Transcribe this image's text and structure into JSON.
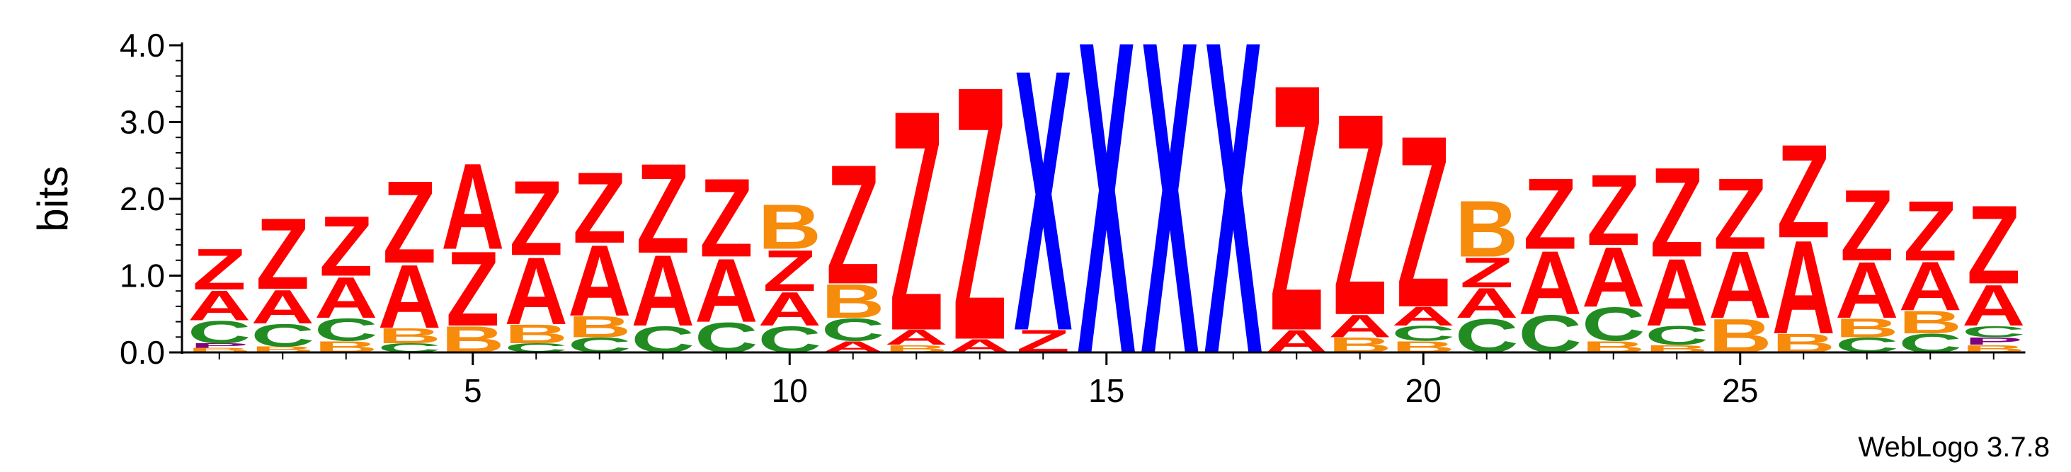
{
  "chart_data": {
    "type": "sequence-logo",
    "ylabel": "bits",
    "ylim": [
      0,
      4.0
    ],
    "yticks": [
      "0.0",
      "1.0",
      "2.0",
      "3.0",
      "4.0"
    ],
    "xticks": [
      5,
      10,
      15,
      20,
      25
    ],
    "colors": {
      "A": "#ff0000",
      "Z": "#ff0000",
      "B": "#f78b0b",
      "C": "#228b22",
      "X": "#0000ff",
      "other": "#800080"
    },
    "positions": [
      {
        "pos": 1,
        "letters": [
          {
            "l": "B",
            "h": 0.06
          },
          {
            "l": "P",
            "h": 0.06
          },
          {
            "l": "C",
            "h": 0.3
          },
          {
            "l": "A",
            "h": 0.4
          },
          {
            "l": "Z",
            "h": 0.55
          }
        ]
      },
      {
        "pos": 2,
        "letters": [
          {
            "l": "B",
            "h": 0.08
          },
          {
            "l": "C",
            "h": 0.3
          },
          {
            "l": "A",
            "h": 0.45
          },
          {
            "l": "Z",
            "h": 0.95
          }
        ]
      },
      {
        "pos": 3,
        "letters": [
          {
            "l": "B",
            "h": 0.15
          },
          {
            "l": "C",
            "h": 0.3
          },
          {
            "l": "A",
            "h": 0.55
          },
          {
            "l": "Z",
            "h": 0.8
          }
        ]
      },
      {
        "pos": 4,
        "letters": [
          {
            "l": "C",
            "h": 0.12
          },
          {
            "l": "B",
            "h": 0.2
          },
          {
            "l": "A",
            "h": 0.85
          },
          {
            "l": "Z",
            "h": 1.1
          }
        ]
      },
      {
        "pos": 5,
        "letters": [
          {
            "l": "B",
            "h": 0.35
          },
          {
            "l": "Z",
            "h": 1.0
          },
          {
            "l": "A",
            "h": 1.15
          }
        ]
      },
      {
        "pos": 6,
        "letters": [
          {
            "l": "C",
            "h": 0.12
          },
          {
            "l": "B",
            "h": 0.25
          },
          {
            "l": "A",
            "h": 0.9
          },
          {
            "l": "Z",
            "h": 1.0
          }
        ]
      },
      {
        "pos": 7,
        "letters": [
          {
            "l": "C",
            "h": 0.2
          },
          {
            "l": "B",
            "h": 0.28
          },
          {
            "l": "A",
            "h": 0.95
          },
          {
            "l": "Z",
            "h": 0.95
          }
        ]
      },
      {
        "pos": 8,
        "letters": [
          {
            "l": "C",
            "h": 0.35
          },
          {
            "l": "A",
            "h": 0.95
          },
          {
            "l": "Z",
            "h": 1.2
          }
        ]
      },
      {
        "pos": 9,
        "letters": [
          {
            "l": "C",
            "h": 0.4
          },
          {
            "l": "A",
            "h": 0.85
          },
          {
            "l": "Z",
            "h": 1.05
          }
        ]
      },
      {
        "pos": 10,
        "letters": [
          {
            "l": "C",
            "h": 0.35
          },
          {
            "l": "A",
            "h": 0.45
          },
          {
            "l": "Z",
            "h": 0.55
          },
          {
            "l": "B",
            "h": 0.6
          }
        ]
      },
      {
        "pos": 11,
        "letters": [
          {
            "l": "A",
            "h": 0.15
          },
          {
            "l": "C",
            "h": 0.3
          },
          {
            "l": "B",
            "h": 0.45
          },
          {
            "l": "Z",
            "h": 1.6
          }
        ]
      },
      {
        "pos": 12,
        "letters": [
          {
            "l": "B",
            "h": 0.1
          },
          {
            "l": "A",
            "h": 0.2
          },
          {
            "l": "Z",
            "h": 2.95
          }
        ]
      },
      {
        "pos": 13,
        "letters": [
          {
            "l": "A",
            "h": 0.18
          },
          {
            "l": "Z",
            "h": 3.4
          }
        ]
      },
      {
        "pos": 14,
        "letters": [
          {
            "l": "Z",
            "h": 0.3
          },
          {
            "l": "X",
            "h": 3.5
          }
        ]
      },
      {
        "pos": 15,
        "letters": [
          {
            "l": "X",
            "h": 4.2
          }
        ]
      },
      {
        "pos": 16,
        "letters": [
          {
            "l": "X",
            "h": 4.2
          }
        ]
      },
      {
        "pos": 17,
        "letters": [
          {
            "l": "X",
            "h": 4.2
          }
        ]
      },
      {
        "pos": 18,
        "letters": [
          {
            "l": "A",
            "h": 0.3
          },
          {
            "l": "Z",
            "h": 3.3
          }
        ]
      },
      {
        "pos": 19,
        "letters": [
          {
            "l": "B",
            "h": 0.2
          },
          {
            "l": "A",
            "h": 0.3
          },
          {
            "l": "Z",
            "h": 2.7
          }
        ]
      },
      {
        "pos": 20,
        "letters": [
          {
            "l": "B",
            "h": 0.15
          },
          {
            "l": "C",
            "h": 0.2
          },
          {
            "l": "A",
            "h": 0.25
          },
          {
            "l": "Z",
            "h": 2.3
          }
        ]
      },
      {
        "pos": 21,
        "letters": [
          {
            "l": "C",
            "h": 0.45
          },
          {
            "l": "A",
            "h": 0.4
          },
          {
            "l": "Z",
            "h": 0.4
          },
          {
            "l": "B",
            "h": 0.75
          }
        ]
      },
      {
        "pos": 22,
        "letters": [
          {
            "l": "C",
            "h": 0.5
          },
          {
            "l": "A",
            "h": 0.85
          },
          {
            "l": "Z",
            "h": 0.95
          }
        ]
      },
      {
        "pos": 23,
        "letters": [
          {
            "l": "B",
            "h": 0.15
          },
          {
            "l": "C",
            "h": 0.45
          },
          {
            "l": "A",
            "h": 0.8
          },
          {
            "l": "Z",
            "h": 0.95
          }
        ]
      },
      {
        "pos": 24,
        "letters": [
          {
            "l": "B",
            "h": 0.1
          },
          {
            "l": "C",
            "h": 0.25
          },
          {
            "l": "A",
            "h": 0.9
          },
          {
            "l": "Z",
            "h": 1.2
          }
        ]
      },
      {
        "pos": 25,
        "letters": [
          {
            "l": "B",
            "h": 0.45
          },
          {
            "l": "A",
            "h": 0.9
          },
          {
            "l": "Z",
            "h": 0.95
          }
        ]
      },
      {
        "pos": 26,
        "letters": [
          {
            "l": "B",
            "h": 0.25
          },
          {
            "l": "A",
            "h": 1.25
          },
          {
            "l": "Z",
            "h": 1.25
          }
        ]
      },
      {
        "pos": 27,
        "letters": [
          {
            "l": "C",
            "h": 0.2
          },
          {
            "l": "B",
            "h": 0.25
          },
          {
            "l": "A",
            "h": 0.75
          },
          {
            "l": "Z",
            "h": 0.95
          }
        ]
      },
      {
        "pos": 28,
        "letters": [
          {
            "l": "C",
            "h": 0.25
          },
          {
            "l": "B",
            "h": 0.3
          },
          {
            "l": "A",
            "h": 0.65
          },
          {
            "l": "Z",
            "h": 0.8
          }
        ]
      },
      {
        "pos": 29,
        "letters": [
          {
            "l": "B",
            "h": 0.1
          },
          {
            "l": "P",
            "h": 0.1
          },
          {
            "l": "C",
            "h": 0.15
          },
          {
            "l": "A",
            "h": 0.55
          },
          {
            "l": "Z",
            "h": 1.05
          }
        ]
      }
    ]
  },
  "footer": {
    "credit": "WebLogo 3.7.8"
  }
}
